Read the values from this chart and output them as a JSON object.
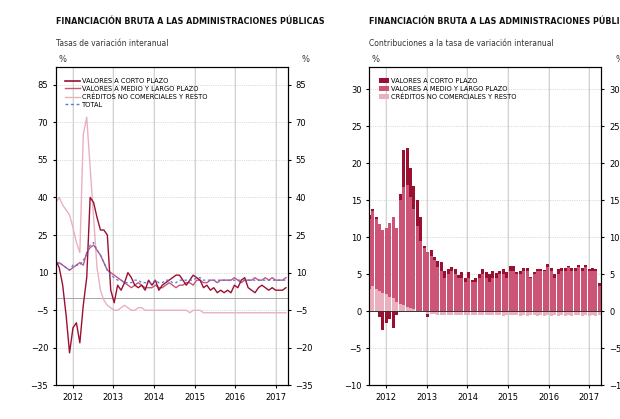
{
  "title1_bold": "FINANCIACIÓN BRUTA A LAS ADMINISTRACIONES PÚBLICAS",
  "subtitle1": "Tasas de variación interanual",
  "title2_bold": "FINANCIACIÓN BRUTA A LAS ADMINISTRACIONES PÚBLICAS",
  "subtitle2": "Contribuciones a la tasa de variación interanual",
  "legend1_labels": [
    "VALORES A CORTO PLAZO",
    "VALORES A MEDIO Y LARGO PLAZO",
    "CRÉDITOS NO COMERCIALES Y RESTO",
    "TOTAL"
  ],
  "legend2_labels": [
    "VALORES A CORTO PLAZO",
    "VALORES A MEDIO Y LARGO PLAZO",
    "CRÉDITOS NO COMERCIALES Y RESTO"
  ],
  "color_corto": "#991030",
  "color_medio": "#CC5577",
  "color_creditos": "#EBB0C0",
  "color_total": "#5577DD",
  "ylim1": [
    -35,
    92
  ],
  "yticks1": [
    -35,
    -20,
    -5,
    10,
    25,
    40,
    55,
    70,
    85
  ],
  "ylim2": [
    -10,
    33
  ],
  "yticks2": [
    -10,
    -5,
    0,
    5,
    10,
    15,
    20,
    25,
    30
  ],
  "bg_color": "#FFFFFF",
  "grid_color": "#BBBBBB"
}
